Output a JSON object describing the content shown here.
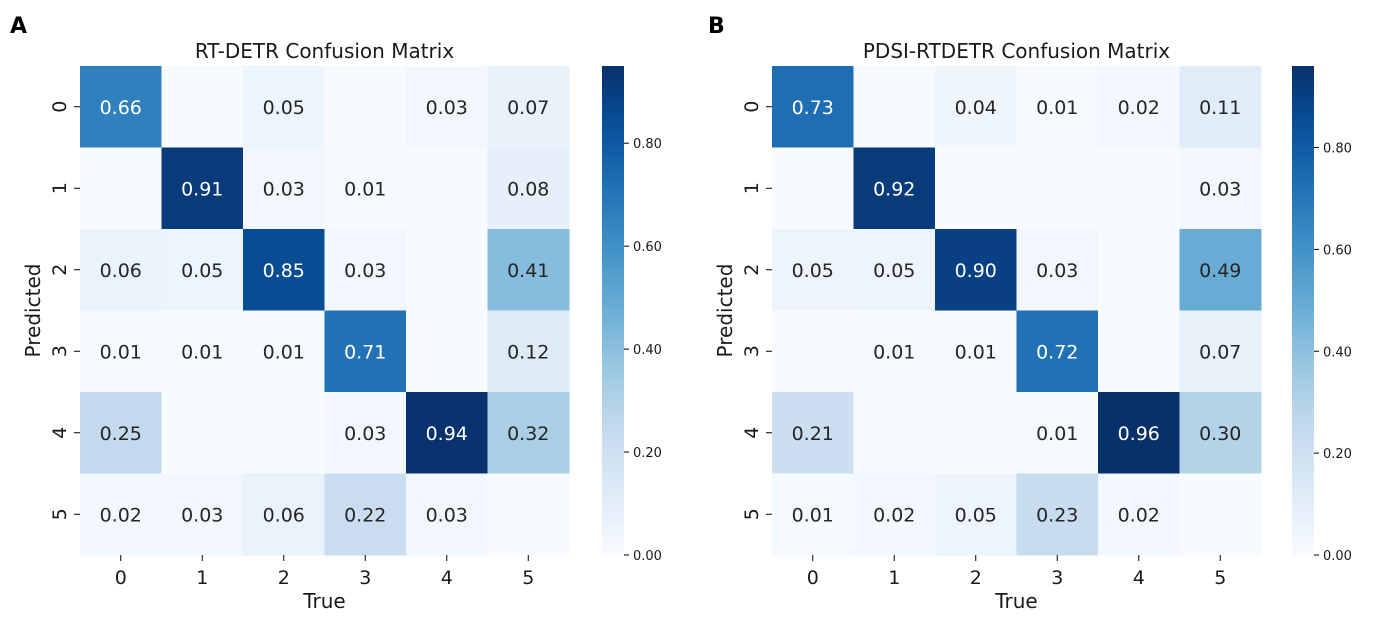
{
  "panels": [
    {
      "letter": "A"
    },
    {
      "letter": "B"
    }
  ],
  "chart_data": [
    {
      "type": "heatmap",
      "title": "RT-DETR Confusion Matrix",
      "xlabel": "True",
      "ylabel": "Predicted",
      "x_categories": [
        "0",
        "1",
        "2",
        "3",
        "4",
        "5"
      ],
      "y_categories": [
        "0",
        "1",
        "2",
        "3",
        "4",
        "5"
      ],
      "values": [
        [
          0.66,
          0,
          0.05,
          0,
          0.03,
          0.07
        ],
        [
          0,
          0.91,
          0.03,
          0.01,
          0,
          0.08
        ],
        [
          0.06,
          0.05,
          0.85,
          0.03,
          0,
          0.41
        ],
        [
          0.01,
          0.01,
          0.01,
          0.71,
          0,
          0.12
        ],
        [
          0.25,
          0,
          0,
          0.03,
          0.94,
          0.32
        ],
        [
          0.02,
          0.03,
          0.06,
          0.22,
          0.03,
          0
        ]
      ],
      "colorbar_range": [
        0,
        0.95
      ],
      "colorbar_ticks": [
        "0.00",
        "0.20",
        "0.40",
        "0.60",
        "0.80"
      ],
      "colormap": "Blues",
      "blank_zero_cells": true
    },
    {
      "type": "heatmap",
      "title": "PDSI-RTDETR Confusion Matrix",
      "xlabel": "True",
      "ylabel": "Predicted",
      "x_categories": [
        "0",
        "1",
        "2",
        "3",
        "4",
        "5"
      ],
      "y_categories": [
        "0",
        "1",
        "2",
        "3",
        "4",
        "5"
      ],
      "values": [
        [
          0.73,
          0,
          0.04,
          0.01,
          0.02,
          0.11
        ],
        [
          0,
          0.92,
          0,
          0,
          0,
          0.03
        ],
        [
          0.05,
          0.05,
          0.9,
          0.03,
          0,
          0.49
        ],
        [
          0,
          0.01,
          0.01,
          0.72,
          0,
          0.07
        ],
        [
          0.21,
          0,
          0,
          0.01,
          0.96,
          0.3
        ],
        [
          0.01,
          0.02,
          0.05,
          0.23,
          0.02,
          0
        ]
      ],
      "colorbar_range": [
        0,
        0.96
      ],
      "colorbar_ticks": [
        "0.00",
        "0.20",
        "0.40",
        "0.60",
        "0.80"
      ],
      "colormap": "Blues",
      "blank_zero_cells": true
    }
  ]
}
